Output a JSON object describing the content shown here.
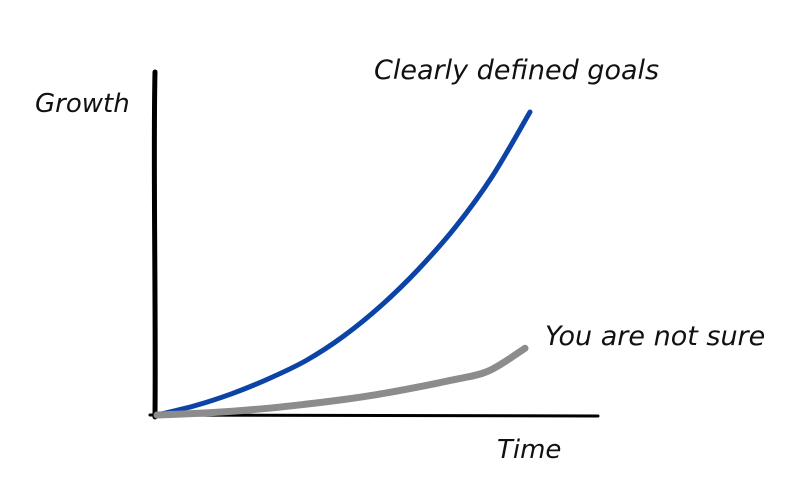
{
  "chart_data": {
    "type": "line",
    "title": "",
    "xlabel": "Time",
    "ylabel": "Growth",
    "xlim": [
      0,
      1
    ],
    "ylim": [
      0,
      1
    ],
    "grid": false,
    "legend": "none",
    "series": [
      {
        "name": "Clearly defined goals",
        "color": "#0b43a6",
        "x": [
          0,
          0.1,
          0.2,
          0.3,
          0.4,
          0.5,
          0.6,
          0.7,
          0.8,
          0.9,
          1.0
        ],
        "y": [
          0,
          0.03,
          0.07,
          0.12,
          0.18,
          0.26,
          0.36,
          0.48,
          0.62,
          0.79,
          1.0
        ]
      },
      {
        "name": "You are not sure",
        "color": "#8c8c8c",
        "x": [
          0,
          0.1,
          0.2,
          0.3,
          0.4,
          0.5,
          0.6,
          0.7,
          0.8,
          0.9,
          1.0
        ],
        "y": [
          0,
          0.005,
          0.012,
          0.022,
          0.035,
          0.05,
          0.068,
          0.09,
          0.115,
          0.145,
          0.22
        ]
      }
    ]
  }
}
